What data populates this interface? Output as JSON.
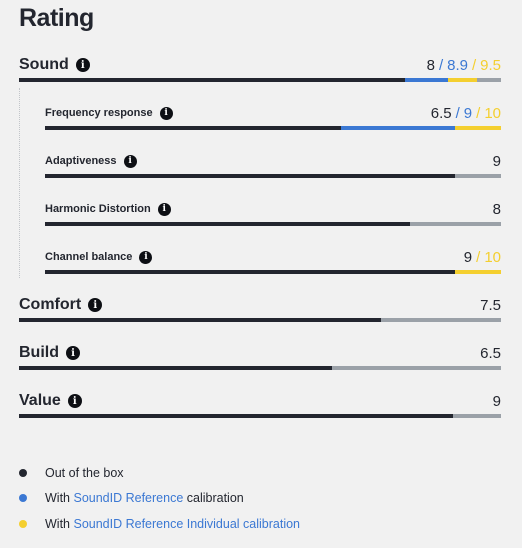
{
  "title": "Rating",
  "colors": {
    "base": "#23262f",
    "soundid": "#3b78d3",
    "individual": "#f4cf2f",
    "track": "#9ba1a8"
  },
  "max_score": 10,
  "ratings": [
    {
      "id": "sound",
      "label": "Sound",
      "level": "main",
      "base": "8",
      "soundid": "8.9",
      "individual": "9.5"
    },
    {
      "id": "frequency-response",
      "label": "Frequency response",
      "level": "sub",
      "base": "6.5",
      "soundid": "9",
      "individual": "10"
    },
    {
      "id": "adaptiveness",
      "label": "Adaptiveness",
      "level": "sub",
      "base": "9"
    },
    {
      "id": "harmonic-distortion",
      "label": "Harmonic Distortion",
      "level": "sub",
      "base": "8"
    },
    {
      "id": "channel-balance",
      "label": "Channel balance",
      "level": "sub",
      "base": "9",
      "individual": "10"
    },
    {
      "id": "comfort",
      "label": "Comfort",
      "level": "main",
      "base": "7.5"
    },
    {
      "id": "build",
      "label": "Build",
      "level": "main",
      "base": "6.5"
    },
    {
      "id": "value",
      "label": "Value",
      "level": "main",
      "base": "9"
    }
  ],
  "legend": {
    "out_of_box": "Out of the box",
    "with_prefix_1": "With",
    "soundid_link": "SoundID Reference",
    "soundid_suffix": "calibration",
    "with_prefix_2": "With",
    "individual_link": "SoundID Reference Individual calibration"
  },
  "info_glyph": "i",
  "slash": "/"
}
